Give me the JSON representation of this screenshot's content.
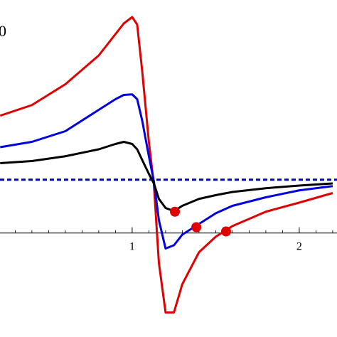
{
  "chart_data": {
    "type": "line",
    "annotation": "0",
    "x": [
      0.21,
      0.4,
      0.6,
      0.8,
      0.9,
      0.95,
      1.0,
      1.03,
      1.06,
      1.1,
      1.13,
      1.16,
      1.2,
      1.25,
      1.3,
      1.4,
      1.5,
      1.6,
      1.8,
      2.0,
      2.2
    ],
    "series": [
      {
        "color": "#e00000",
        "values": [
          2.2,
          2.4,
          2.79,
          3.33,
          3.73,
          3.93,
          4.05,
          3.91,
          3.04,
          1.71,
          0.91,
          -0.56,
          -1.49,
          -1.49,
          -0.96,
          -0.36,
          -0.07,
          0.13,
          0.4,
          0.57,
          0.75
        ]
      },
      {
        "color": "#0000e0",
        "values": [
          1.61,
          1.71,
          1.91,
          2.31,
          2.51,
          2.59,
          2.6,
          2.51,
          2.11,
          1.44,
          0.97,
          0.24,
          -0.29,
          -0.23,
          -0.03,
          0.17,
          0.37,
          0.51,
          0.67,
          0.8,
          0.88
        ]
      },
      {
        "color": "#000000",
        "values": [
          1.31,
          1.35,
          1.44,
          1.57,
          1.67,
          1.71,
          1.67,
          1.57,
          1.37,
          1.11,
          0.93,
          0.64,
          0.47,
          0.41,
          0.51,
          0.64,
          0.71,
          0.77,
          0.84,
          0.89,
          0.93
        ]
      }
    ],
    "reference_line": {
      "y": 1,
      "color": "#0000c0",
      "dashed": true
    },
    "points": [
      {
        "x": 1.256,
        "y": 0.4,
        "color": "#e00000"
      },
      {
        "x": 1.384,
        "y": 0.11,
        "color": "#e00000"
      },
      {
        "x": 1.562,
        "y": 0.03,
        "color": "#e00000"
      }
    ],
    "xlim": [
      0.209,
      2.226
    ],
    "ylim": [
      -1.95,
      4.37
    ],
    "xticks": [
      1,
      2
    ],
    "minor_xticks": [
      0.3,
      0.4,
      0.5,
      0.6,
      0.7,
      0.8,
      0.9,
      1.1,
      1.2,
      1.3,
      1.4,
      1.5,
      1.6,
      1.7,
      1.8,
      1.9,
      2.1,
      2.2
    ]
  }
}
